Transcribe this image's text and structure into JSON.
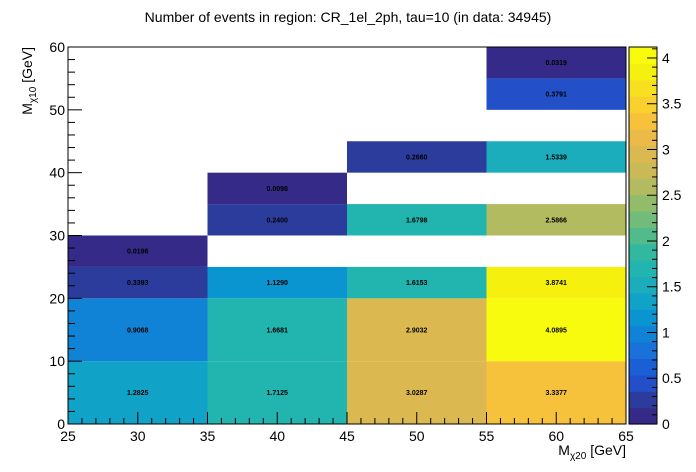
{
  "chart_data": {
    "type": "heatmap",
    "title": "Number of events in region: CR_1el_2ph, tau=10 (in data: 34945)",
    "xlabel": {
      "main": "M",
      "sub": "χ20",
      "unit": " [GeV]"
    },
    "ylabel": {
      "main": "M",
      "sub": "χ10",
      "unit": " [GeV]"
    },
    "xlim": [
      25,
      65
    ],
    "ylim": [
      0,
      60
    ],
    "x_ticks": [
      "25",
      "30",
      "35",
      "40",
      "45",
      "50",
      "55",
      "60",
      "65"
    ],
    "y_ticks": [
      "0",
      "10",
      "20",
      "30",
      "40",
      "50",
      "60"
    ],
    "colorbar": {
      "range": [
        0,
        4.12
      ],
      "ticks": [
        "0",
        "0.5",
        "1",
        "1.5",
        "2",
        "2.5",
        "3",
        "3.5",
        "4"
      ]
    },
    "cells": [
      {
        "x0": 25,
        "x1": 35,
        "y0": 0,
        "y1": 10,
        "value": 1.2825,
        "label": "1.2825"
      },
      {
        "x0": 25,
        "x1": 35,
        "y0": 10,
        "y1": 20,
        "value": 0.9068,
        "label": "0.9068"
      },
      {
        "x0": 25,
        "x1": 35,
        "y0": 20,
        "y1": 25,
        "value": 0.3393,
        "label": "0.3393"
      },
      {
        "x0": 25,
        "x1": 35,
        "y0": 25,
        "y1": 30,
        "value": 0.0196,
        "label": "0.0196"
      },
      {
        "x0": 35,
        "x1": 45,
        "y0": 0,
        "y1": 10,
        "value": 1.7125,
        "label": "1.7125"
      },
      {
        "x0": 35,
        "x1": 45,
        "y0": 10,
        "y1": 20,
        "value": 1.6681,
        "label": "1.6681"
      },
      {
        "x0": 35,
        "x1": 45,
        "y0": 20,
        "y1": 25,
        "value": 1.129,
        "label": "1.1290"
      },
      {
        "x0": 35,
        "x1": 45,
        "y0": 30,
        "y1": 35,
        "value": 0.24,
        "label": "0.2400"
      },
      {
        "x0": 35,
        "x1": 45,
        "y0": 35,
        "y1": 40,
        "value": 0.0098,
        "label": "0.0098"
      },
      {
        "x0": 45,
        "x1": 55,
        "y0": 0,
        "y1": 10,
        "value": 3.0287,
        "label": "3.0287"
      },
      {
        "x0": 45,
        "x1": 55,
        "y0": 10,
        "y1": 20,
        "value": 2.9032,
        "label": "2.9032"
      },
      {
        "x0": 45,
        "x1": 55,
        "y0": 20,
        "y1": 25,
        "value": 1.6153,
        "label": "1.6153"
      },
      {
        "x0": 45,
        "x1": 55,
        "y0": 30,
        "y1": 35,
        "value": 1.6798,
        "label": "1.6798"
      },
      {
        "x0": 45,
        "x1": 55,
        "y0": 40,
        "y1": 45,
        "value": 0.266,
        "label": "0.2660"
      },
      {
        "x0": 55,
        "x1": 65,
        "y0": 0,
        "y1": 10,
        "value": 3.3377,
        "label": "3.3377"
      },
      {
        "x0": 55,
        "x1": 65,
        "y0": 10,
        "y1": 20,
        "value": 4.0895,
        "label": "4.0895"
      },
      {
        "x0": 55,
        "x1": 65,
        "y0": 20,
        "y1": 25,
        "value": 3.8741,
        "label": "3.8741"
      },
      {
        "x0": 55,
        "x1": 65,
        "y0": 30,
        "y1": 35,
        "value": 2.5866,
        "label": "2.5866"
      },
      {
        "x0": 55,
        "x1": 65,
        "y0": 40,
        "y1": 45,
        "value": 1.5339,
        "label": "1.5339"
      },
      {
        "x0": 55,
        "x1": 65,
        "y0": 50,
        "y1": 55,
        "value": 0.3791,
        "label": "0.3791"
      },
      {
        "x0": 55,
        "x1": 65,
        "y0": 55,
        "y1": 60,
        "value": 0.0319,
        "label": "0.0319"
      }
    ],
    "palette": [
      "#352a87",
      "#2c3c9c",
      "#2350c9",
      "#1a5fd4",
      "#1872d9",
      "#1183d6",
      "#0b95d0",
      "#11a2c8",
      "#1badbb",
      "#22b4ae",
      "#33b8a0",
      "#52bb8c",
      "#72bc7b",
      "#93bc6a",
      "#b2bb60",
      "#cbb958",
      "#dcb950",
      "#ebba48",
      "#f6c23c",
      "#fad02e",
      "#f8e021",
      "#f6f00f",
      "#f9fb0e"
    ]
  }
}
